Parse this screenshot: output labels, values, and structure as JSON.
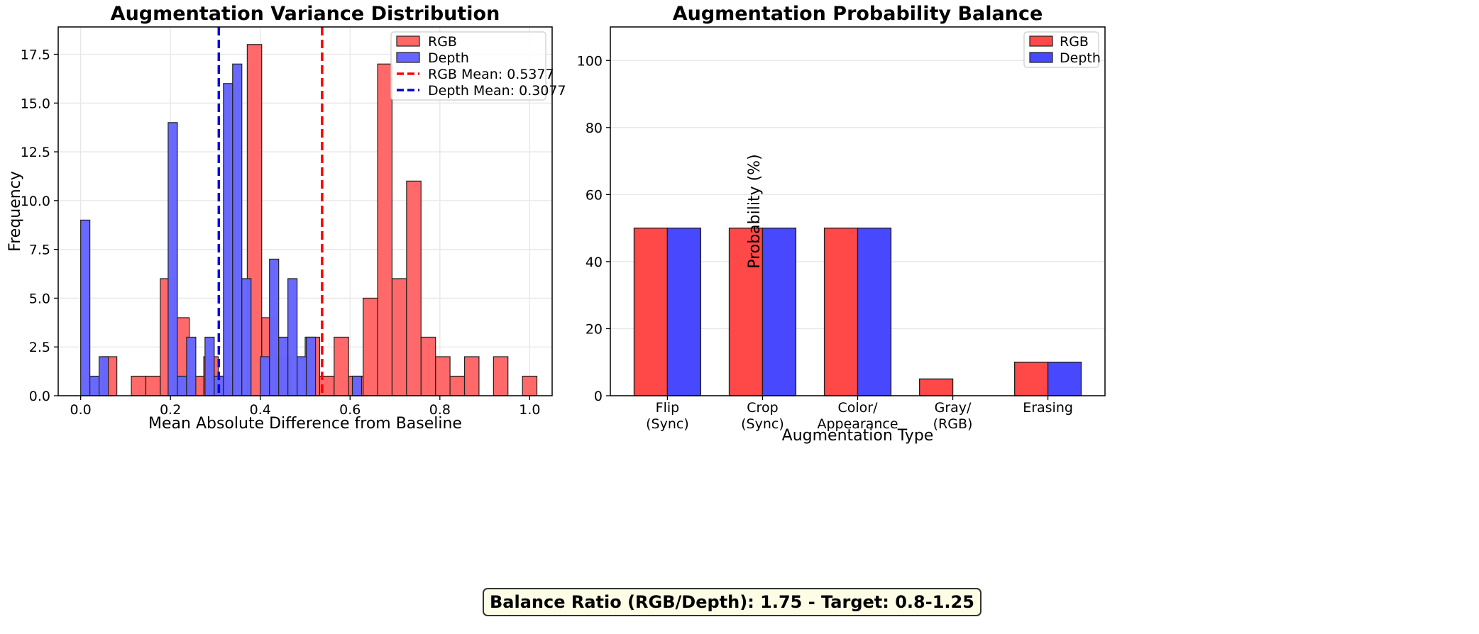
{
  "footer": {
    "text": "Balance Ratio (RGB/Depth): 1.75 - Target: 0.8-1.25"
  },
  "colors": {
    "rgb_hist": "#ff6666",
    "depth_hist": "#6666ff",
    "rgb_bar": "#ff4848",
    "depth_bar": "#4848ff",
    "edge": "#222222",
    "rgb_line": "#ff0000",
    "depth_line": "#0000dd"
  },
  "chart_data": [
    {
      "type": "histogram",
      "title": "Augmentation Variance Distribution",
      "xlabel": "Mean Absolute Difference from Baseline",
      "ylabel": "Frequency",
      "xlim": [
        -0.05,
        1.05
      ],
      "ylim": [
        0,
        18.9
      ],
      "xticks": [
        "0.0",
        "0.2",
        "0.4",
        "0.6",
        "0.8",
        "1.0"
      ],
      "yticks": [
        "0.0",
        "2.5",
        "5.0",
        "7.5",
        "10.0",
        "12.5",
        "15.0",
        "17.5"
      ],
      "grid": true,
      "legend_position": "upper right",
      "series": [
        {
          "name": "RGB",
          "bin_width": 0.0322,
          "bins": [
            {
              "x": 0.0645,
              "count": 2
            },
            {
              "x": 0.129,
              "count": 1
            },
            {
              "x": 0.1613,
              "count": 1
            },
            {
              "x": 0.1935,
              "count": 6
            },
            {
              "x": 0.2258,
              "count": 4
            },
            {
              "x": 0.2581,
              "count": 1
            },
            {
              "x": 0.2903,
              "count": 2
            },
            {
              "x": 0.3226,
              "count": 1
            },
            {
              "x": 0.3871,
              "count": 18
            },
            {
              "x": 0.4194,
              "count": 4
            },
            {
              "x": 0.4516,
              "count": 2
            },
            {
              "x": 0.5161,
              "count": 3
            },
            {
              "x": 0.5484,
              "count": 1
            },
            {
              "x": 0.5806,
              "count": 3
            },
            {
              "x": 0.6129,
              "count": 1
            },
            {
              "x": 0.6452,
              "count": 5
            },
            {
              "x": 0.6774,
              "count": 17
            },
            {
              "x": 0.7097,
              "count": 6
            },
            {
              "x": 0.7419,
              "count": 11
            },
            {
              "x": 0.7742,
              "count": 3
            },
            {
              "x": 0.8065,
              "count": 2
            },
            {
              "x": 0.8387,
              "count": 1
            },
            {
              "x": 0.871,
              "count": 2
            },
            {
              "x": 0.9355,
              "count": 2
            },
            {
              "x": 1.0,
              "count": 1
            }
          ]
        },
        {
          "name": "Depth",
          "bin_width": 0.0205,
          "bins": [
            {
              "x": 0.0103,
              "count": 9
            },
            {
              "x": 0.0308,
              "count": 1
            },
            {
              "x": 0.0513,
              "count": 2
            },
            {
              "x": 0.2051,
              "count": 14
            },
            {
              "x": 0.2256,
              "count": 1
            },
            {
              "x": 0.2462,
              "count": 3
            },
            {
              "x": 0.2872,
              "count": 3
            },
            {
              "x": 0.3077,
              "count": 1
            },
            {
              "x": 0.3282,
              "count": 16
            },
            {
              "x": 0.3487,
              "count": 17
            },
            {
              "x": 0.3692,
              "count": 6
            },
            {
              "x": 0.4103,
              "count": 2
            },
            {
              "x": 0.4308,
              "count": 7
            },
            {
              "x": 0.4513,
              "count": 3
            },
            {
              "x": 0.4718,
              "count": 6
            },
            {
              "x": 0.4923,
              "count": 2
            },
            {
              "x": 0.5128,
              "count": 3
            },
            {
              "x": 0.6154,
              "count": 1
            }
          ]
        }
      ],
      "mean_lines": [
        {
          "name": "RGB Mean: 0.5377",
          "value": 0.5377,
          "series": "RGB"
        },
        {
          "name": "Depth Mean: 0.3077",
          "value": 0.3077,
          "series": "Depth"
        }
      ]
    },
    {
      "type": "bar",
      "title": "Augmentation Probability Balance",
      "xlabel": "Augmentation Type",
      "ylabel": "Probability (%)",
      "ylim": [
        0,
        110
      ],
      "yticks": [
        "0",
        "20",
        "40",
        "60",
        "80",
        "100"
      ],
      "grid": true,
      "legend_position": "upper right",
      "categories": [
        "Flip\n(Sync)",
        "Crop\n(Sync)",
        "Color/\nAppearance",
        "Gray/\n(RGB)",
        "Erasing"
      ],
      "series": [
        {
          "name": "RGB",
          "values": [
            50,
            50,
            50,
            5,
            10
          ]
        },
        {
          "name": "Depth",
          "values": [
            50,
            50,
            50,
            0,
            10
          ]
        }
      ]
    }
  ]
}
